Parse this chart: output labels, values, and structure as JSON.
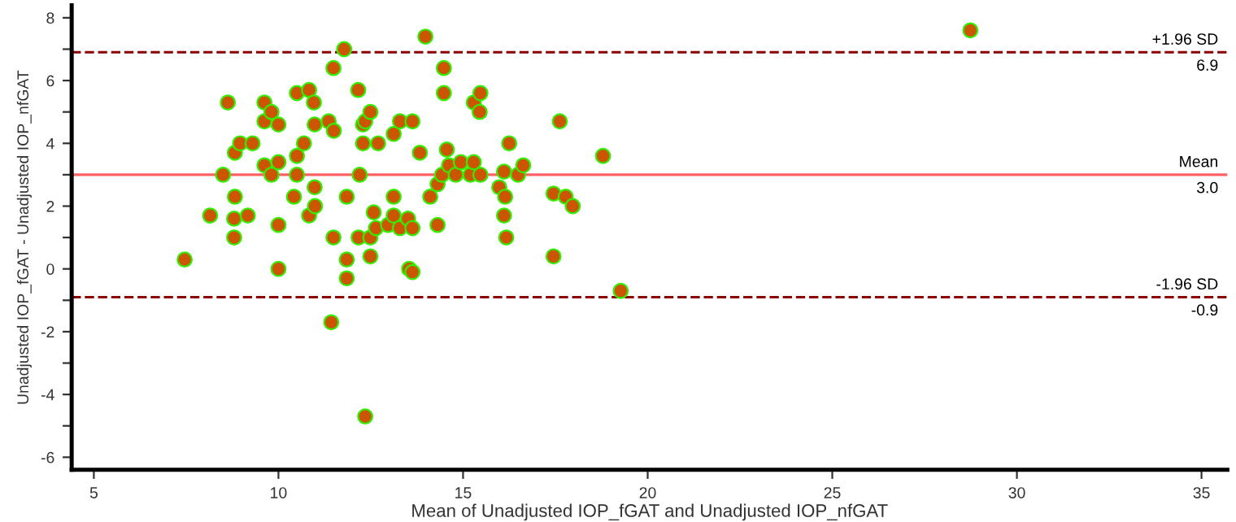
{
  "chart_data": {
    "type": "scatter",
    "xlabel": "Mean of Unadjusted IOP_fGAT and Unadjusted IOP_nfGAT",
    "ylabel": "Unadjusted IOP_fGAT - Unadjusted IOP_nfGAT",
    "xlim": [
      4.4,
      35.7
    ],
    "ylim": [
      -6.4,
      8.4
    ],
    "xticks": [
      5,
      10,
      15,
      20,
      25,
      30,
      35
    ],
    "yticks": [
      {
        "value": -6,
        "label": "-6"
      },
      {
        "value": -5,
        "label": null
      },
      {
        "value": -4,
        "label": "-4"
      },
      {
        "value": -3,
        "label": null
      },
      {
        "value": -2,
        "label": "-2"
      },
      {
        "value": -1,
        "label": null
      },
      0,
      {
        "value": 1,
        "label": null
      },
      2,
      {
        "value": 3,
        "label": null
      },
      4,
      {
        "value": 5,
        "label": null
      },
      6,
      {
        "value": 7,
        "label": null
      },
      8
    ],
    "grid": false,
    "legend": false,
    "marker": "circle",
    "series": [
      {
        "color": "#cc5500",
        "x": [
          7.46,
          8.15,
          8.5,
          8.63,
          8.82,
          8.82,
          8.8,
          8.8,
          8.96,
          9.17,
          9.3,
          9.62,
          9.62,
          9.62,
          9.81,
          9.81,
          10.0,
          10.0,
          10.0,
          10.0,
          10.5,
          10.5,
          10.5,
          10.42,
          10.69,
          10.83,
          10.83,
          10.96,
          10.98,
          10.98,
          10.99,
          11.36,
          11.49,
          11.5,
          11.49,
          11.43,
          11.78,
          11.85,
          11.85,
          11.85,
          12.16,
          12.2,
          12.17,
          12.29,
          12.35,
          12.29,
          12.49,
          12.58,
          12.49,
          12.49,
          12.35,
          12.64,
          12.7,
          12.97,
          13.12,
          13.12,
          13.12,
          13.29,
          13.29,
          13.51,
          13.54,
          13.63,
          13.63,
          13.63,
          13.83,
          13.98,
          14.11,
          14.31,
          14.31,
          14.48,
          14.48,
          14.43,
          14.56,
          14.62,
          14.8,
          14.94,
          15.2,
          15.29,
          15.29,
          15.47,
          15.45,
          15.47,
          15.98,
          16.11,
          16.14,
          16.11,
          16.17,
          16.25,
          16.49,
          16.63,
          17.45,
          17.62,
          17.45,
          17.78,
          17.97,
          18.79,
          19.27,
          28.74
        ],
        "values": [
          0.3,
          1.7,
          3.0,
          5.3,
          3.7,
          2.3,
          1.6,
          1.0,
          4.0,
          1.7,
          4.0,
          5.3,
          4.7,
          3.3,
          5.0,
          3.0,
          4.6,
          3.4,
          1.4,
          0.0,
          5.6,
          3.6,
          3.0,
          2.3,
          4.0,
          5.7,
          1.7,
          5.3,
          4.6,
          2.6,
          2.0,
          4.7,
          6.4,
          4.4,
          1.0,
          -1.7,
          7.0,
          2.3,
          0.3,
          -0.3,
          5.7,
          3.0,
          1.0,
          4.6,
          4.7,
          4.0,
          5.0,
          1.8,
          1.0,
          0.4,
          -4.7,
          1.3,
          4.0,
          1.4,
          4.3,
          2.3,
          1.7,
          4.7,
          1.3,
          1.6,
          0.0,
          -0.1,
          4.7,
          1.3,
          3.7,
          7.4,
          2.3,
          1.4,
          2.7,
          6.4,
          5.6,
          3.0,
          3.8,
          3.3,
          3.0,
          3.4,
          3.0,
          3.4,
          5.3,
          5.6,
          5.0,
          3.0,
          2.6,
          3.1,
          2.3,
          1.7,
          1.0,
          4.0,
          3.0,
          3.3,
          2.4,
          4.7,
          0.4,
          2.3,
          2.0,
          3.6,
          -0.7,
          7.6
        ]
      }
    ],
    "ref_lines": [
      {
        "axis": "y",
        "value": 6.9,
        "label": "+1.96 SD\n6.9",
        "color": "#8b0000",
        "line_style": "dashed"
      },
      {
        "axis": "y",
        "value": 3.0,
        "label": "Mean\n3.0",
        "color": "#ff6060",
        "line_style": "solid"
      },
      {
        "axis": "y",
        "value": -0.9,
        "label": "-1.96 SD\n-0.9",
        "color": "#8b0000",
        "line_style": "dashed"
      }
    ]
  }
}
